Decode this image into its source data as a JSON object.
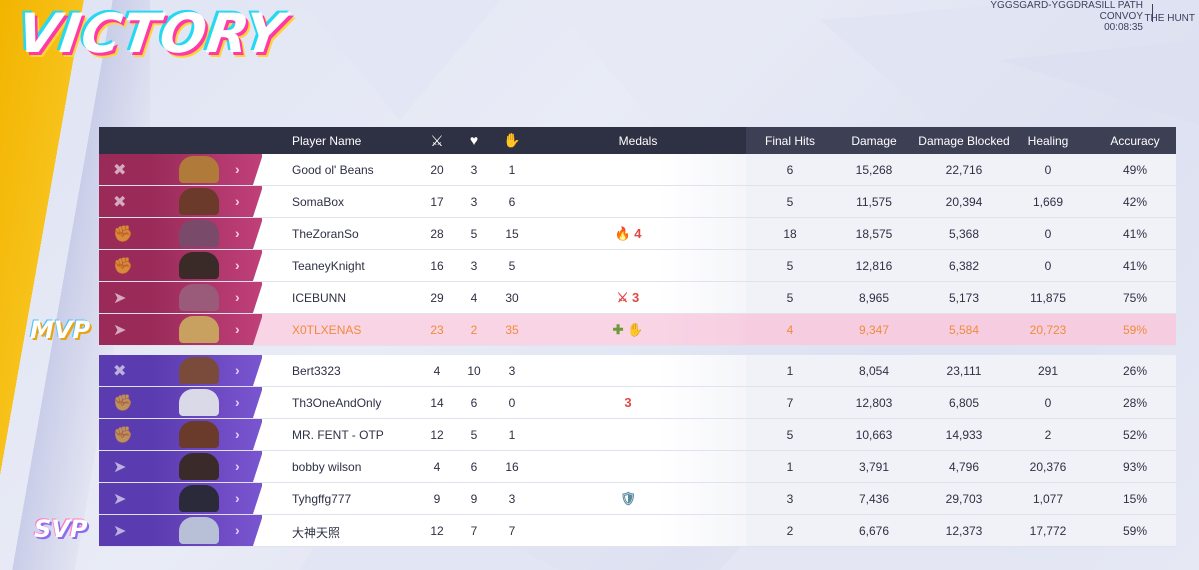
{
  "result_title": "VICTORY",
  "map": {
    "line1": "YGGSGARD-YGGDRASILL PATH",
    "line2": "CONVOY",
    "time": "00:08:35",
    "mode": "THE HUNT"
  },
  "columns": {
    "player": "Player Name",
    "kills_icon": "swords-icon",
    "deaths_icon": "broken-heart-icon",
    "assists_icon": "helping-hand-icon",
    "medals": "Medals",
    "final_hits": "Final Hits",
    "damage": "Damage",
    "damage_blocked": "Damage Blocked",
    "healing": "Healing",
    "accuracy": "Accuracy"
  },
  "badges": {
    "mvp": "MVP",
    "svp": "SVP"
  },
  "colors": {
    "team1": "#9a2b58",
    "team2": "#5b3bb0",
    "mvp_text": "#f28a3c",
    "header": "#2e3044",
    "victory_yellow": "#f2b400"
  },
  "team1": [
    {
      "name": "Good ol' Beans",
      "k": "20",
      "d": "3",
      "a": "1",
      "medals": "",
      "fh": "6",
      "dmg": "15,268",
      "blk": "22,716",
      "heal": "0",
      "acc": "49%",
      "role": "vanguard-icon"
    },
    {
      "name": "SomaBox",
      "k": "17",
      "d": "3",
      "a": "6",
      "medals": "",
      "fh": "5",
      "dmg": "11,575",
      "blk": "20,394",
      "heal": "1,669",
      "acc": "42%",
      "role": "vanguard-icon"
    },
    {
      "name": "TheZoranSo",
      "k": "28",
      "d": "5",
      "a": "15",
      "medals": "🔥 4",
      "fh": "18",
      "dmg": "18,575",
      "blk": "5,368",
      "heal": "0",
      "acc": "41%",
      "role": "duelist-icon"
    },
    {
      "name": "TeaneyKnight",
      "k": "16",
      "d": "3",
      "a": "5",
      "medals": "",
      "fh": "5",
      "dmg": "12,816",
      "blk": "6,382",
      "heal": "0",
      "acc": "41%",
      "role": "duelist-icon"
    },
    {
      "name": "ICEBUNN",
      "k": "29",
      "d": "4",
      "a": "30",
      "medals": "⚔ 3",
      "fh": "5",
      "dmg": "8,965",
      "blk": "5,173",
      "heal": "11,875",
      "acc": "75%",
      "role": "strategist-icon"
    },
    {
      "name": "X0TLXENAS",
      "k": "23",
      "d": "2",
      "a": "35",
      "medals": "✚ ✋",
      "fh": "4",
      "dmg": "9,347",
      "blk": "5,584",
      "heal": "20,723",
      "acc": "59%",
      "role": "strategist-icon"
    }
  ],
  "team2": [
    {
      "name": "Bert3323",
      "k": "4",
      "d": "10",
      "a": "3",
      "medals": "",
      "fh": "1",
      "dmg": "8,054",
      "blk": "23,111",
      "heal": "291",
      "acc": "26%",
      "role": "vanguard-icon"
    },
    {
      "name": "Th3OneAndOnly",
      "k": "14",
      "d": "6",
      "a": "0",
      "medals": "3",
      "fh": "7",
      "dmg": "12,803",
      "blk": "6,805",
      "heal": "0",
      "acc": "28%",
      "role": "duelist-icon"
    },
    {
      "name": "MR. FENT - OTP",
      "k": "12",
      "d": "5",
      "a": "1",
      "medals": "",
      "fh": "5",
      "dmg": "10,663",
      "blk": "14,933",
      "heal": "2",
      "acc": "52%",
      "role": "duelist-icon"
    },
    {
      "name": "bobby wilson",
      "k": "4",
      "d": "6",
      "a": "16",
      "medals": "",
      "fh": "1",
      "dmg": "3,791",
      "blk": "4,796",
      "heal": "20,376",
      "acc": "93%",
      "role": "strategist-icon"
    },
    {
      "name": "Tyhgffg777",
      "k": "9",
      "d": "9",
      "a": "3",
      "medals": "🛡",
      "fh": "3",
      "dmg": "7,436",
      "blk": "29,703",
      "heal": "1,077",
      "acc": "15%",
      "role": "strategist-icon"
    },
    {
      "name": "大神天照",
      "k": "12",
      "d": "7",
      "a": "7",
      "medals": "",
      "fh": "2",
      "dmg": "6,676",
      "blk": "12,373",
      "heal": "17,772",
      "acc": "59%",
      "role": "strategist-icon"
    }
  ]
}
